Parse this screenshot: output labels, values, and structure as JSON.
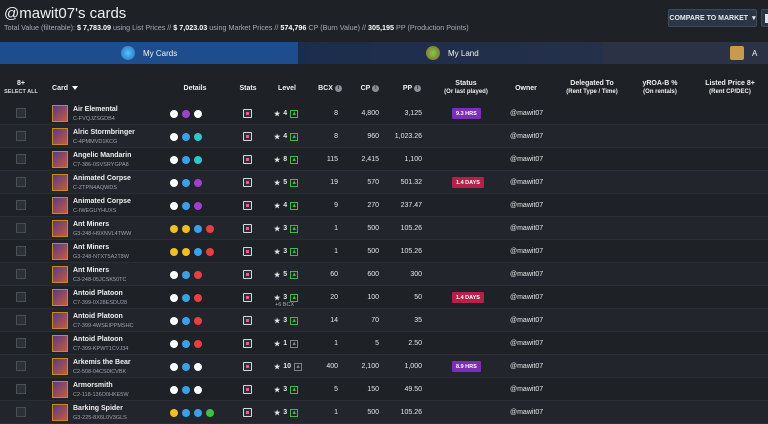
{
  "header": {
    "title": "@mawit07's cards",
    "totals_label": "Total Value (filterable):",
    "list_value": "$ 7,783.09",
    "list_suffix": "using List Prices //",
    "market_value": "$ 7,023.03",
    "market_suffix": "using Market Prices //",
    "cp_value": "574,796",
    "cp_suffix": "CP (Burn Value) //",
    "pp_value": "305,195",
    "pp_suffix": "PP (Production Points)",
    "compare_button": "COMPARE TO MARKET"
  },
  "tabs": [
    {
      "label": "My Cards",
      "active": true
    },
    {
      "label": "My Land",
      "active": false
    },
    {
      "label": "A",
      "active": false
    }
  ],
  "columns": {
    "select_count": "8+",
    "select_all": "SELECT ALL",
    "card": "Card",
    "details": "Details",
    "stats": "Stats",
    "level": "Level",
    "bcx": "BCX",
    "cp": "CP",
    "pp": "PP",
    "status": "Status",
    "status_sub": "(Or last played)",
    "owner": "Owner",
    "delegated": "Delegated To",
    "delegated_sub": "(Rent Type / Time)",
    "yroa": "yROA-B %",
    "yroa_sub": "(On rentals)",
    "listed": "Listed Price",
    "listed_count": "8+",
    "listed_sub": "(Rent CP/DEC)"
  },
  "rows": [
    {
      "name": "Air Elemental",
      "id": "C-FVQJZSGDB4",
      "level": "4",
      "bcx": "8",
      "cp": "4,800",
      "pp": "3,125",
      "status": "9.3 HRS",
      "status_color": "#7b2fb5",
      "owner": "@mawit07"
    },
    {
      "name": "Alric Stormbringer",
      "id": "C-4PMMVD1KCG",
      "level": "4",
      "bcx": "8",
      "cp": "960",
      "pp": "1,023.26",
      "status": "",
      "owner": "@mawit07"
    },
    {
      "name": "Angelic Mandarin",
      "id": "C7-386-0SVSRYGPA8",
      "level": "8",
      "bcx": "115",
      "cp": "2,415",
      "pp": "1,100",
      "status": "",
      "owner": "@mawit07"
    },
    {
      "name": "Animated Corpse",
      "id": "C-ZTPN4AQWDS",
      "level": "5",
      "bcx": "19",
      "cp": "570",
      "pp": "501.32",
      "status": "1.4 DAYS",
      "status_color": "#b8204a",
      "owner": "@mawit07"
    },
    {
      "name": "Animated Corpse",
      "id": "C-IWEGUYHUXS",
      "level": "4",
      "bcx": "9",
      "cp": "270",
      "pp": "237.47",
      "status": "",
      "owner": "@mawit07"
    },
    {
      "name": "Ant Miners",
      "id": "G3-248-H9XNVL4TWW",
      "level": "3",
      "bcx": "1",
      "cp": "500",
      "pp": "105.26",
      "status": "",
      "owner": "@mawit07"
    },
    {
      "name": "Ant Miners",
      "id": "G3-248-NTXT5A2T8W",
      "level": "3",
      "bcx": "1",
      "cp": "500",
      "pp": "105.26",
      "status": "",
      "owner": "@mawit07"
    },
    {
      "name": "Ant Miners",
      "id": "C3-248-05JCSK50TC",
      "level": "5",
      "bcx": "60",
      "cp": "600",
      "pp": "300",
      "status": "",
      "owner": "@mawit07"
    },
    {
      "name": "Antoid Platoon",
      "id": "C7-399-0X28ESDU28",
      "level": "3",
      "bcx": "20",
      "cp": "100",
      "pp": "50",
      "status": "1.4 DAYS",
      "status_color": "#b8204a",
      "owner": "@mawit07",
      "bcx_extra": "+6 BCX"
    },
    {
      "name": "Antoid Platoon",
      "id": "C7-399-4WSEIPPMSHC",
      "level": "3",
      "bcx": "14",
      "cp": "70",
      "pp": "35",
      "status": "",
      "owner": "@mawit07"
    },
    {
      "name": "Antoid Platoon",
      "id": "C7-399-KPWT1CVJ34",
      "level": "1",
      "bcx": "1",
      "cp": "5",
      "pp": "2.50",
      "status": "",
      "owner": "@mawit07"
    },
    {
      "name": "Arkemis the Bear",
      "id": "C2-508-04CS0ICVBK",
      "level": "10",
      "bcx": "400",
      "cp": "2,100",
      "pp": "1,000",
      "status": "8.9 HRS",
      "status_color": "#7b2fb5",
      "owner": "@mawit07"
    },
    {
      "name": "Armorsmith",
      "id": "C2-118-136O0HKE5W",
      "level": "3",
      "bcx": "5",
      "cp": "150",
      "pp": "49.50",
      "status": "",
      "owner": "@mawit07"
    },
    {
      "name": "Barking Spider",
      "id": "G3-225-8X6L0V3GLS",
      "level": "3",
      "bcx": "1",
      "cp": "500",
      "pp": "105.26",
      "status": "",
      "owner": "@mawit07"
    }
  ],
  "icon_colors": [
    "#ffffff",
    "#a040d0",
    "#3aa0e8",
    "#e84040",
    "#2ec8c8",
    "#f0c020",
    "#40c040",
    "#9a9a9a"
  ]
}
